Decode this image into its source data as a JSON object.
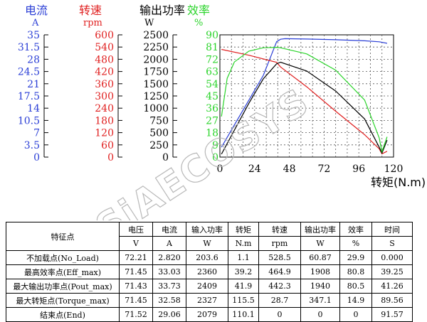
{
  "chart_data": {
    "type": "line",
    "xlabel": "转矩(N.m)",
    "x_ticks": [
      "0",
      "24",
      "48",
      "72",
      "96",
      "120"
    ],
    "xlim": [
      0,
      120
    ],
    "grid": true,
    "axes": [
      {
        "name": "电流",
        "unit": "A",
        "color": "#2b3fd6",
        "range": [
          0,
          35
        ],
        "ticks": [
          "35",
          "31.5",
          "28",
          "24.5",
          "21",
          "17.5",
          "14",
          "10.5",
          "7",
          "3.5",
          "0"
        ]
      },
      {
        "name": "转速",
        "unit": "rpm",
        "color": "#e02020",
        "range": [
          0,
          600
        ],
        "ticks": [
          "600",
          "540",
          "480",
          "420",
          "360",
          "300",
          "240",
          "180",
          "120",
          "60",
          "0"
        ]
      },
      {
        "name": "输出功率",
        "unit": "W",
        "color": "#000000",
        "range": [
          0,
          2500
        ],
        "ticks": [
          "2500",
          "2250",
          "2000",
          "1750",
          "1500",
          "1250",
          "1000",
          "750",
          "500",
          "250",
          "0"
        ]
      },
      {
        "name": "效率",
        "unit": "%",
        "color": "#2bd42b",
        "range": [
          0,
          90
        ],
        "ticks": [
          "90",
          "81",
          "72",
          "63",
          "54",
          "45",
          "36",
          "27",
          "18",
          "9",
          "0"
        ]
      }
    ],
    "series": [
      {
        "axis": 0,
        "color": "#2b3fd6",
        "x": [
          1.1,
          10,
          20,
          30,
          39.2,
          41.9,
          45,
          60,
          80,
          100,
          110.1,
          115.5
        ],
        "y": [
          2.82,
          9.2,
          16.3,
          23.4,
          33.03,
          33.73,
          33.9,
          33.8,
          33.6,
          33.3,
          33.0,
          32.58
        ]
      },
      {
        "axis": 1,
        "color": "#e02020",
        "x": [
          1.1,
          20,
          39.2,
          41.9,
          60,
          80,
          100,
          110.1,
          112,
          115.5
        ],
        "y": [
          528.5,
          500,
          464.9,
          442.3,
          345,
          225,
          110,
          40,
          16,
          28.7
        ]
      },
      {
        "axis": 2,
        "color": "#000000",
        "x": [
          1.1,
          10,
          20,
          30,
          39.2,
          41.9,
          60,
          80,
          100,
          110.1,
          112,
          115.5
        ],
        "y": [
          60.87,
          550,
          1100,
          1600,
          1908,
          1940,
          1760,
          1350,
          780,
          200,
          80,
          347.1
        ]
      },
      {
        "axis": 3,
        "color": "#2bd42b",
        "x": [
          1.1,
          5,
          10,
          20,
          30,
          39.2,
          41.9,
          60,
          80,
          100,
          110.1,
          112,
          115.5
        ],
        "y": [
          29.9,
          58,
          70,
          78,
          80.5,
          80.8,
          80.5,
          76,
          64,
          42,
          14,
          4,
          14.9
        ]
      }
    ],
    "watermark": "SiAECOSYS"
  },
  "table": {
    "header_top": [
      "特征点",
      "电压",
      "电流",
      "输入功率",
      "转矩",
      "转速",
      "输出功率",
      "效率",
      "时间"
    ],
    "header_units": [
      "V",
      "A",
      "W",
      "N.m",
      "rpm",
      "W",
      "%",
      "S"
    ],
    "rows": [
      [
        "不加载点(No_Load)",
        "72.21",
        "2.820",
        "203.6",
        "1.1",
        "528.5",
        "60.87",
        "29.9",
        "0.000"
      ],
      [
        "最高效率点(Eff_max)",
        "71.45",
        "33.03",
        "2360",
        "39.2",
        "464.9",
        "1908",
        "80.8",
        "39.25"
      ],
      [
        "最大输出功率点(Pout_max)",
        "71.43",
        "33.73",
        "2409",
        "41.9",
        "442.3",
        "1940",
        "80.5",
        "41.26"
      ],
      [
        "最大转矩点(Torque_max)",
        "71.45",
        "32.58",
        "2327",
        "115.5",
        "28.7",
        "347.1",
        "14.9",
        "89.56"
      ],
      [
        "结束点(End)",
        "71.52",
        "29.06",
        "2079",
        "110.1",
        "0",
        "0",
        "0",
        "91.57"
      ]
    ]
  }
}
